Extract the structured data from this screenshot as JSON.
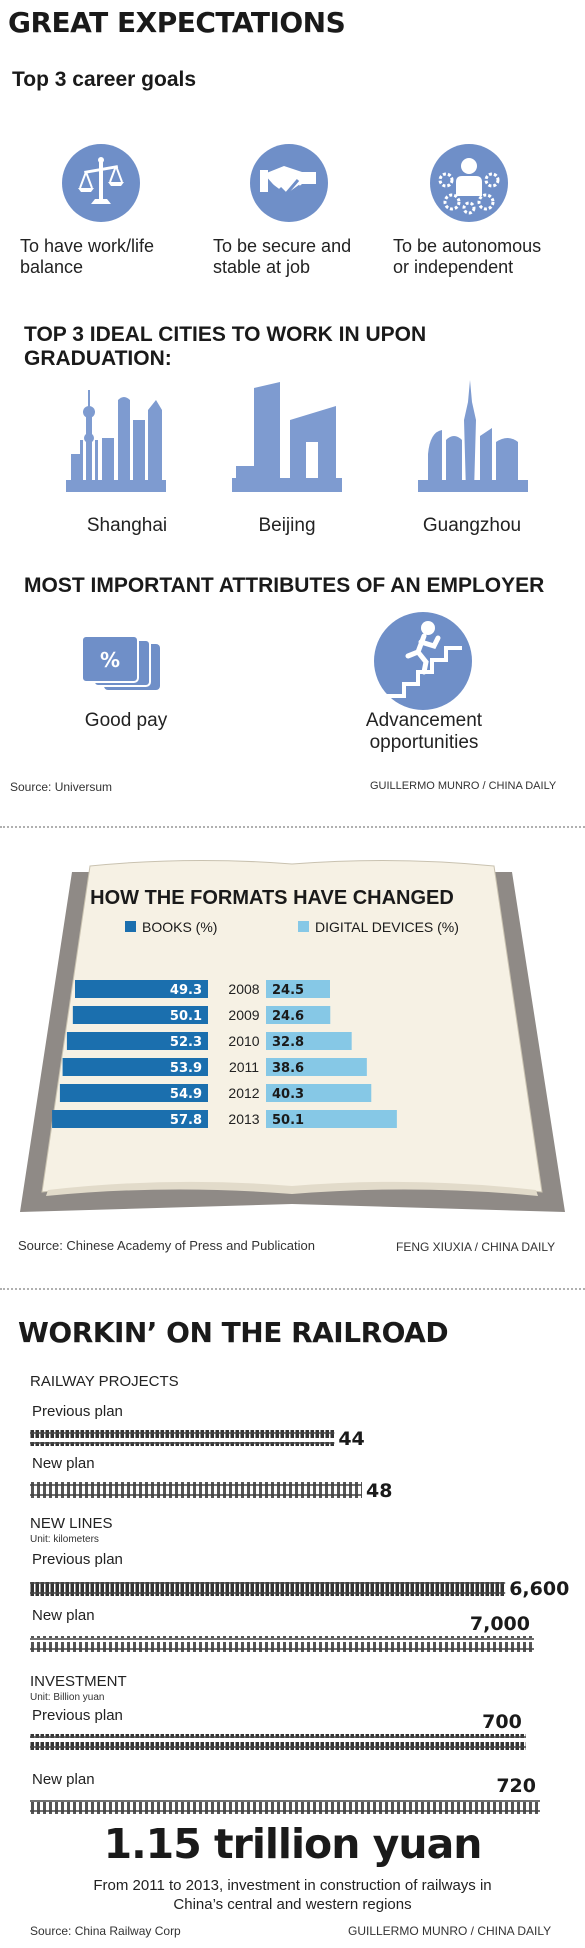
{
  "section1": {
    "title": "GREAT EXPECTATIONS",
    "subtitle": "Top 3 career goals",
    "goals": [
      {
        "line1": "To have work/life",
        "line2": "balance",
        "icon": "scales-icon"
      },
      {
        "line1": "To be secure and",
        "line2": "stable at job",
        "icon": "handshake-icon"
      },
      {
        "line1": "To be autonomous",
        "line2": "or independent",
        "icon": "person-gears-icon"
      }
    ],
    "cities_title_line1": "TOP 3 IDEAL CITIES TO WORK IN UPON",
    "cities_title_line2": "GRADUATION:",
    "cities": [
      "Shanghai",
      "Beijing",
      "Guangzhou"
    ],
    "employer_title": "MOST IMPORTANT ATTRIBUTES OF AN EMPLOYER",
    "attributes": [
      {
        "line1": "Good pay",
        "line2": "",
        "icon": "money-percent-icon"
      },
      {
        "line1": "Advancement",
        "line2": "opportunities",
        "icon": "climbing-stairs-icon"
      }
    ],
    "source": "Source: Universum",
    "credit": "GUILLERMO MUNRO / CHINA DAILY"
  },
  "section2": {
    "source": "Source: Chinese Academy of Press and Publication",
    "credit": "FENG XIUXIA / CHINA DAILY"
  },
  "section3": {
    "title": "WORKIN’ ON THE RAILROAD",
    "big_value": "1.15 trillion yuan",
    "note_line1": "From 2011 to 2013, investment in construction of railways in",
    "note_line2": "China’s central and western regions",
    "source": "Source: China Railway Corp",
    "credit": "GUILLERMO MUNRO / CHINA DAILY"
  },
  "colors": {
    "icon_blue": "#6f8fc8",
    "books_blue": "#1b6fae",
    "digital_blue": "#86c8e6",
    "book_cover": "#8f8a86",
    "page_cream": "#f6f1e4"
  },
  "chart_data": [
    {
      "type": "bar",
      "title": "HOW THE FORMATS HAVE CHANGED",
      "categories": [
        "2008",
        "2009",
        "2010",
        "2011",
        "2012",
        "2013"
      ],
      "series": [
        {
          "name": "BOOKS (%)",
          "values": [
            49.3,
            50.1,
            52.3,
            53.9,
            54.9,
            57.8
          ]
        },
        {
          "name": "DIGITAL DEVICES (%)",
          "values": [
            24.5,
            24.6,
            32.8,
            38.6,
            40.3,
            50.1
          ]
        }
      ],
      "legend": "top-left"
    },
    {
      "type": "bar",
      "groups": [
        {
          "heading": "RAILWAY PROJECTS",
          "unit": "",
          "max": 48,
          "items": [
            {
              "label": "Previous plan",
              "value": 44,
              "value_text": "44"
            },
            {
              "label": "New plan",
              "value": 48,
              "value_text": "48"
            }
          ]
        },
        {
          "heading": "NEW LINES",
          "unit": "Unit: kilometers",
          "max": 7000,
          "items": [
            {
              "label": "Previous plan",
              "value": 6600,
              "value_text": "6,600"
            },
            {
              "label": "New plan",
              "value": 7000,
              "value_text": "7,000"
            }
          ]
        },
        {
          "heading": "INVESTMENT",
          "unit": "Unit: Billion yuan",
          "max": 720,
          "items": [
            {
              "label": "Previous plan",
              "value": 700,
              "value_text": "700"
            },
            {
              "label": "New plan",
              "value": 720,
              "value_text": "720"
            }
          ]
        }
      ]
    }
  ]
}
